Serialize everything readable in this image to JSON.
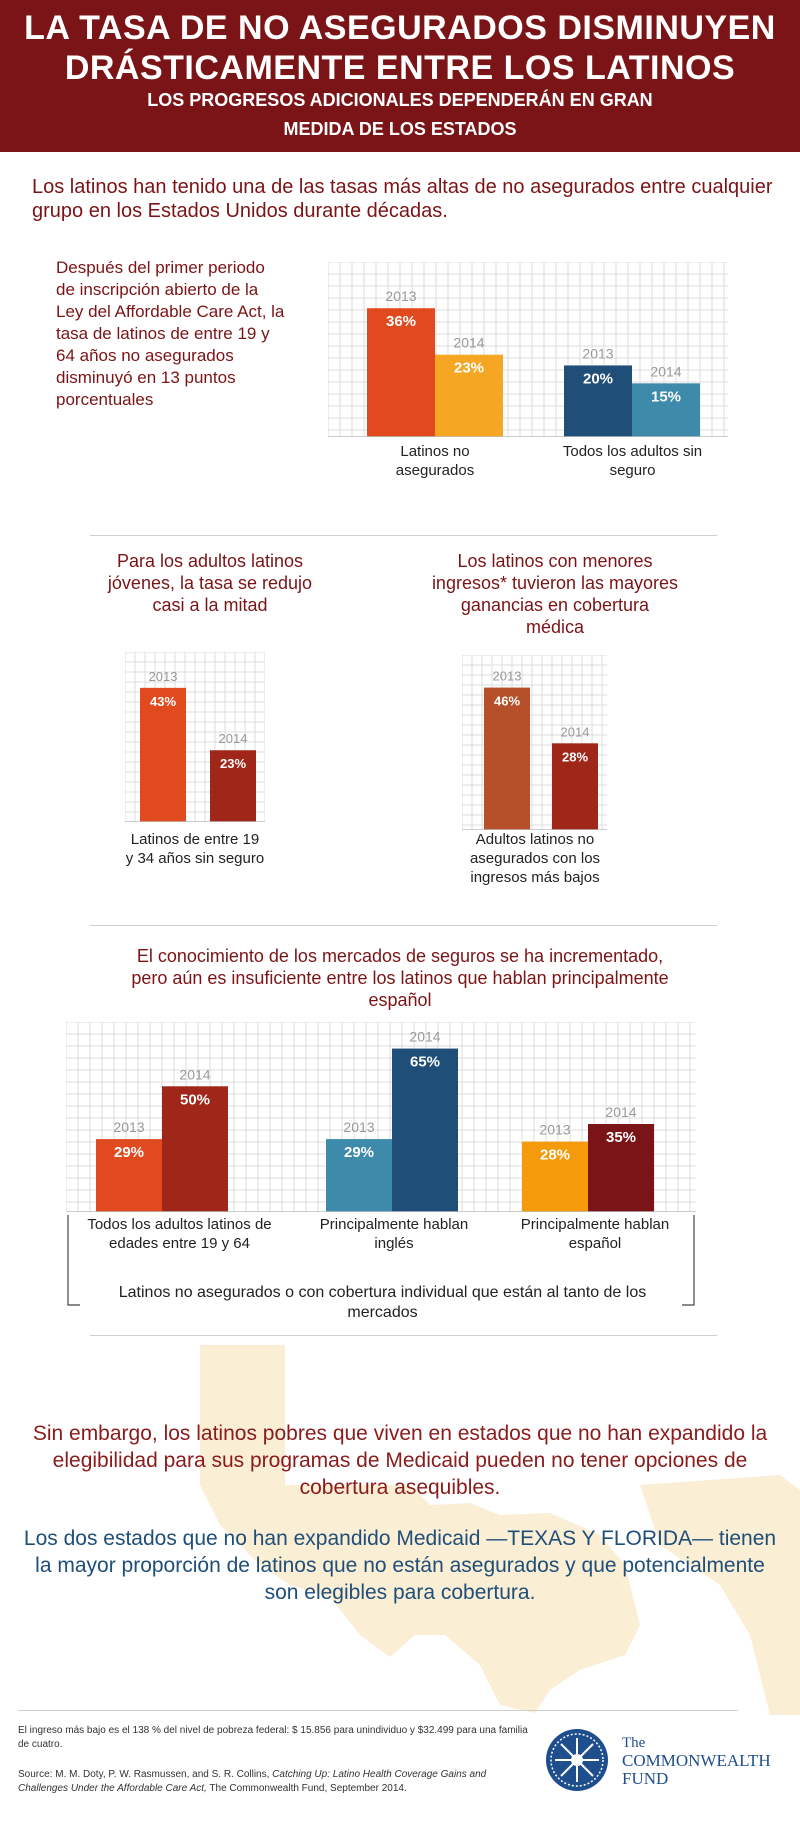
{
  "header": {
    "title_line1": "LA TASA DE NO ASEGURADOS DISMINUYEN",
    "title_line2": "DRÁSTICAMENTE ENTRE LOS LATINOS",
    "subtitle_line1": "LOS PROGRESOS ADICIONALES DEPENDERÁN EN GRAN",
    "subtitle_line2": "MEDIDA DE LOS ESTADOS"
  },
  "intro": "Los latinos han tenido una de las tasas más altas de no asegurados entre cualquier grupo en los Estados Unidos durante décadas.",
  "section1_text": "Después del primer periodo de inscripción abierto de la Ley del Affordable Care Act, la tasa de latinos de entre 19 y 64 años no asegurados disminuyó en 13 puntos porcentuales",
  "section2_heading": "Para los adultos latinos jóvenes, la tasa se redujo casi a la mitad",
  "section3_heading": "Los latinos con menores ingresos* tuvieron las mayores ganancias en cobertura médica",
  "section4_heading": "El conocimiento de los mercados de seguros se ha incrementado, pero aún es insuficiente entre los latinos que hablan principalmente español",
  "chart_data": [
    {
      "type": "bar",
      "categories": [
        "Latinos no asegurados",
        "Todos los adultos sin seguro"
      ],
      "series": [
        {
          "name": "2013",
          "values": [
            36,
            20
          ]
        },
        {
          "name": "2014",
          "values": [
            23,
            15
          ]
        }
      ],
      "colors": [
        [
          "#e14a1f",
          "#f5a623"
        ],
        [
          "#1f4e79",
          "#3d8aaa"
        ]
      ],
      "ylim": [
        0,
        45
      ]
    },
    {
      "type": "bar",
      "categories": [
        "Latinos de entre 19 y 34 años sin seguro"
      ],
      "series": [
        {
          "name": "2013",
          "values": [
            43
          ]
        },
        {
          "name": "2014",
          "values": [
            23
          ]
        }
      ],
      "colors": [
        [
          "#e14a1f",
          "#a0261a"
        ]
      ],
      "ylim": [
        0,
        50
      ]
    },
    {
      "type": "bar",
      "categories": [
        "Adultos latinos no asegurados con los ingresos más bajos"
      ],
      "series": [
        {
          "name": "2013",
          "values": [
            46
          ]
        },
        {
          "name": "2014",
          "values": [
            28
          ]
        }
      ],
      "colors": [
        [
          "#b5502a",
          "#a0261a"
        ]
      ],
      "ylim": [
        0,
        52
      ]
    },
    {
      "type": "bar",
      "categories": [
        "Todos los adultos latinos de edades entre 19 y 64",
        "Principalmente hablan inglés",
        "Principalmente hablan español"
      ],
      "series": [
        {
          "name": "2013",
          "values": [
            29,
            29,
            28
          ]
        },
        {
          "name": "2014",
          "values": [
            50,
            65,
            35
          ]
        }
      ],
      "colors": [
        [
          "#e14a1f",
          "#a0261a"
        ],
        [
          "#3d8aaa",
          "#1f4e79"
        ],
        [
          "#f59a0b",
          "#7b1416"
        ]
      ],
      "ylim": [
        0,
        70
      ],
      "bracket_label": "Latinos no asegurados o con cobertura individual que están al tanto de los mercados"
    }
  ],
  "bottom_text1": "Sin embargo, los latinos pobres que viven en estados que no han expandido la elegibilidad para sus programas de Medicaid pueden no tener opciones de cobertura asequibles.",
  "bottom_text2": "Los dos estados que no han expandido Medicaid —TEXAS Y FLORIDA— tienen la mayor proporción de latinos que no están asegurados y que potencialmente son elegibles para cobertura.",
  "footnote": "El ingreso más bajo es el 138 % del nivel de pobreza federal: $ 15.856 para unindividuo y $32.499 para una familia de cuatro.",
  "source_prefix": "Source:  M. M. Doty, P. W. Rasmussen, and S. R. Collins,",
  "source_title": "Catching Up: Latino Health Coverage Gains and Challenges Under the Affordable Care Act,",
  "source_suffix": "The Commonwealth Fund, September 2014.",
  "logo": {
    "line1": "The",
    "line2": "COMMONWEALTH",
    "line3": "FUND"
  }
}
